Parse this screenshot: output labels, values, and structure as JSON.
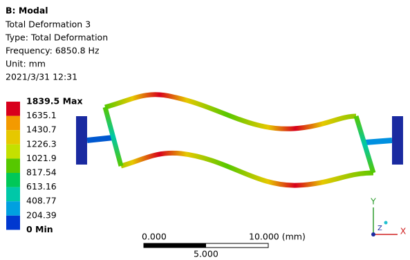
{
  "header": {
    "title": "B: Modal",
    "lines": [
      "Total Deformation 3",
      "Type: Total Deformation",
      "Frequency: 6850.8 Hz",
      "Unit: mm",
      "2021/3/31 12:31"
    ]
  },
  "legend": {
    "labels": [
      "1839.5 Max",
      "1635.1",
      "1430.7",
      "1226.3",
      "1021.9",
      "817.54",
      "613.16",
      "408.77",
      "204.39",
      "0 Min"
    ],
    "colors": [
      "#d8001c",
      "#f39a00",
      "#e6c800",
      "#c4e000",
      "#56c800",
      "#00c858",
      "#00c8a8",
      "#00a0e0",
      "#0038d0"
    ]
  },
  "scale_bar": {
    "left": "0.000",
    "right": "10.000 (mm)",
    "middle": "5.000"
  },
  "triad": {
    "y": "Y",
    "x": "X",
    "z": "Z"
  }
}
